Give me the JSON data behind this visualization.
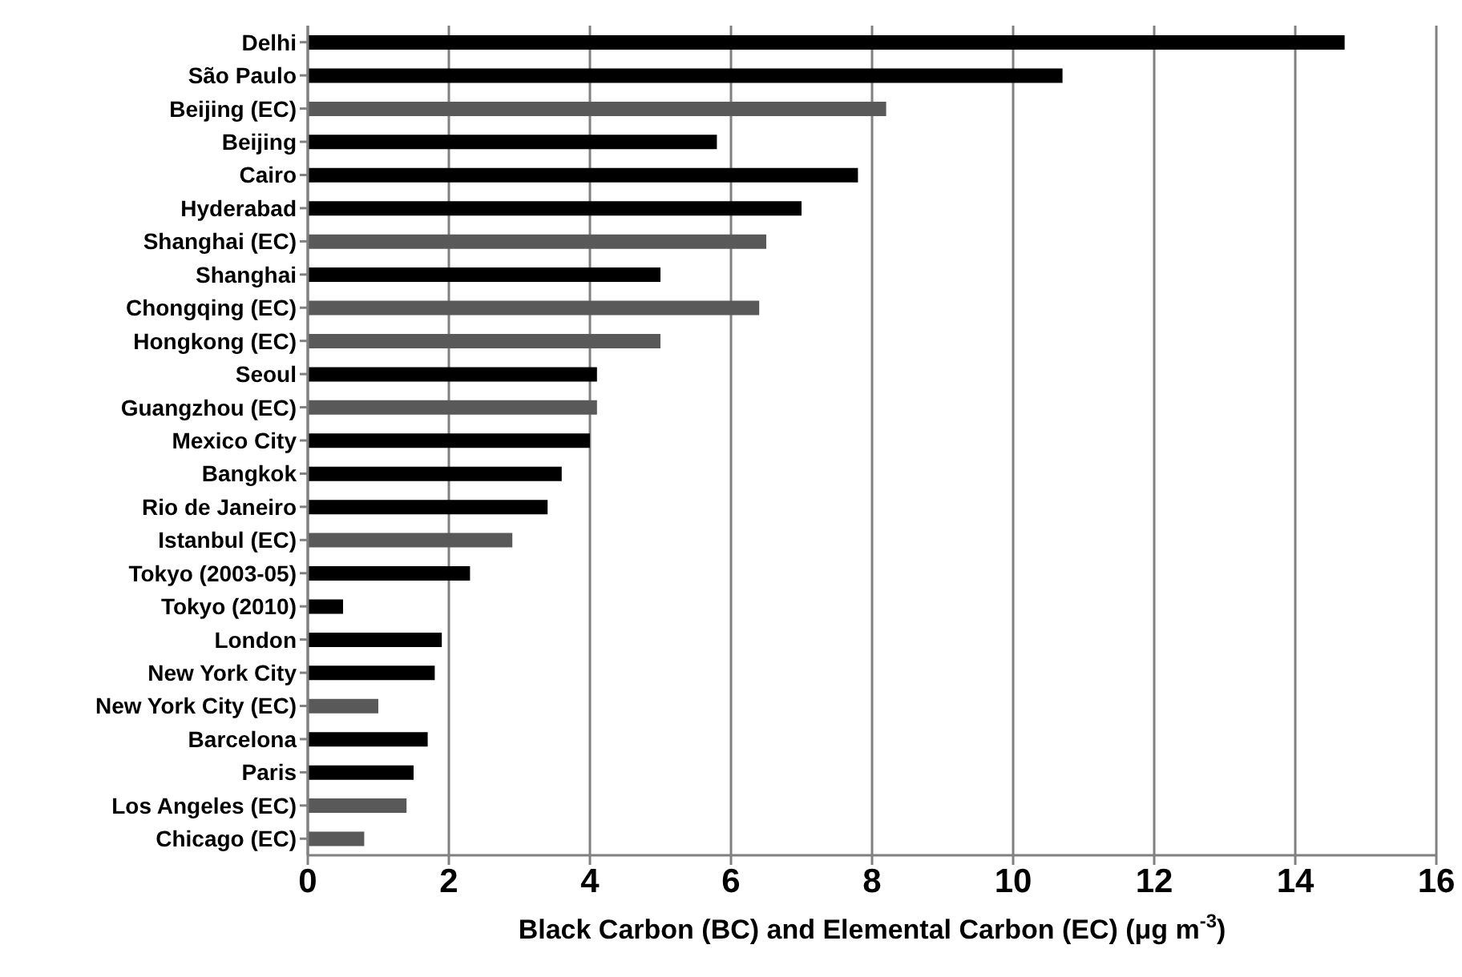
{
  "chart_data": {
    "type": "bar",
    "orientation": "horizontal",
    "xlabel": "Black Carbon (BC) and Elemental Carbon (EC) (μg m$^{-3}$)",
    "categories": [
      "Delhi",
      "São Paulo",
      "Beijing (EC)",
      "Beijing",
      "Cairo",
      "Hyderabad",
      "Shanghai (EC)",
      "Shanghai",
      "Chongqing (EC)",
      "Hongkong (EC)",
      "Seoul",
      "Guangzhou (EC)",
      "Mexico City",
      "Bangkok",
      "Rio de Janeiro",
      "Istanbul (EC)",
      "Tokyo (2003-05)",
      "Tokyo (2010)",
      "London",
      "New York City",
      "New York City (EC)",
      "Barcelona",
      "Paris",
      "Los Angeles (EC)",
      "Chicago (EC)"
    ],
    "values": [
      14.7,
      10.7,
      8.2,
      5.8,
      7.8,
      7.0,
      6.5,
      5.0,
      6.4,
      5.0,
      4.1,
      4.1,
      4.0,
      3.6,
      3.4,
      2.9,
      2.3,
      0.5,
      1.9,
      1.8,
      1.0,
      1.7,
      1.5,
      1.4,
      0.8
    ],
    "colors": [
      "#000000",
      "#000000",
      "#595959",
      "#000000",
      "#000000",
      "#000000",
      "#595959",
      "#000000",
      "#595959",
      "#595959",
      "#000000",
      "#595959",
      "#000000",
      "#000000",
      "#000000",
      "#595959",
      "#000000",
      "#000000",
      "#000000",
      "#000000",
      "#595959",
      "#000000",
      "#000000",
      "#595959",
      "#595959"
    ],
    "xlim": [
      0,
      16
    ],
    "xticks": [
      0,
      2,
      4,
      6,
      8,
      10,
      12,
      14,
      16
    ],
    "grid": "x",
    "legend": false
  }
}
